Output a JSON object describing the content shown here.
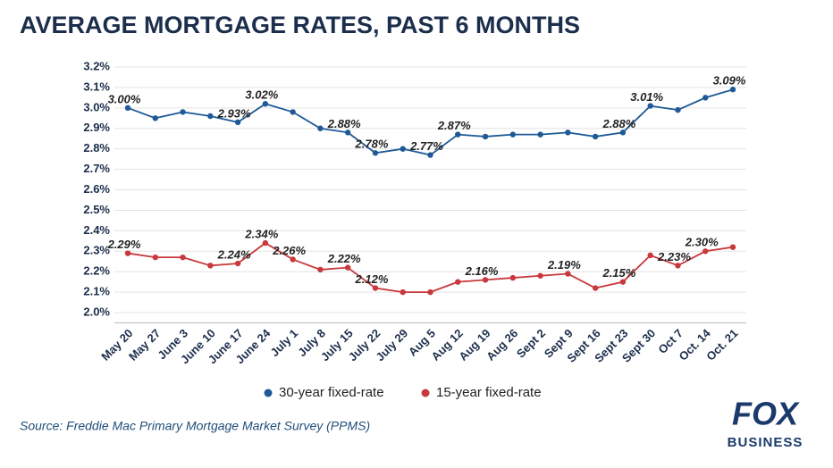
{
  "chart_data": {
    "type": "line",
    "title": "AVERAGE MORTGAGE RATES, PAST 6 MONTHS",
    "categories": [
      "May 20",
      "May 27",
      "June 3",
      "June 10",
      "June 17",
      "June 24",
      "July 1",
      "July 8",
      "July 15",
      "July 22",
      "July 29",
      "Aug 5",
      "Aug 12",
      "Aug 19",
      "Aug 26",
      "Sept 2",
      "Sept 9",
      "Sept 16",
      "Sept 23",
      "Sept 30",
      "Oct 7",
      "Oct. 14",
      "Oct. 21"
    ],
    "series": [
      {
        "name": "30-year fixed-rate",
        "color": "#1f5a96",
        "values": [
          3.0,
          2.95,
          2.98,
          2.96,
          2.93,
          3.02,
          2.98,
          2.9,
          2.88,
          2.78,
          2.8,
          2.77,
          2.87,
          2.86,
          2.87,
          2.87,
          2.88,
          2.86,
          2.88,
          3.01,
          2.99,
          3.05,
          3.09
        ],
        "value_labels": [
          "3.00%",
          null,
          null,
          null,
          "2.93%",
          "3.02%",
          null,
          null,
          "2.88%",
          "2.78%",
          null,
          "2.77%",
          "2.87%",
          null,
          null,
          null,
          null,
          null,
          "2.88%",
          "3.01%",
          null,
          null,
          "3.09%"
        ]
      },
      {
        "name": "15-year fixed-rate",
        "color": "#c8383c",
        "values": [
          2.29,
          2.27,
          2.27,
          2.23,
          2.24,
          2.34,
          2.26,
          2.21,
          2.22,
          2.12,
          2.1,
          2.1,
          2.15,
          2.16,
          2.17,
          2.18,
          2.19,
          2.12,
          2.15,
          2.28,
          2.23,
          2.3,
          2.32
        ],
        "value_labels": [
          "2.29%",
          null,
          null,
          null,
          "2.24%",
          "2.34%",
          "2.26%",
          null,
          "2.22%",
          "2.12%",
          null,
          null,
          null,
          "2.16%",
          null,
          null,
          "2.19%",
          null,
          "2.15%",
          null,
          "2.23%",
          "2.30%",
          null
        ]
      }
    ],
    "ylim": [
      1.95,
      3.2
    ],
    "yticks": [
      {
        "value": 2.0,
        "label": "2.0%"
      },
      {
        "value": 2.1,
        "label": "2.1%"
      },
      {
        "value": 2.2,
        "label": "2.2%"
      },
      {
        "value": 2.3,
        "label": "2.3%"
      },
      {
        "value": 2.4,
        "label": "2.4%"
      },
      {
        "value": 2.5,
        "label": "2.5%"
      },
      {
        "value": 2.6,
        "label": "2.6%"
      },
      {
        "value": 2.7,
        "label": "2.7%"
      },
      {
        "value": 2.8,
        "label": "2.8%"
      },
      {
        "value": 2.9,
        "label": "2.9%"
      },
      {
        "value": 3.0,
        "label": "3.0%"
      },
      {
        "value": 3.1,
        "label": "3.1%"
      },
      {
        "value": 3.2,
        "label": "3.2%"
      }
    ],
    "grid": true,
    "legend": "bottom",
    "source": "Source: Freddie Mac Primary Mortgage Market Survey (PPMS)"
  },
  "logo": {
    "top": "FOX",
    "bottom": "BUSINESS"
  }
}
